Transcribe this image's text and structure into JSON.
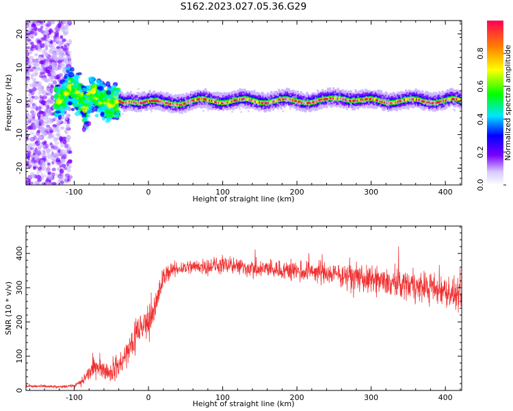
{
  "title": "S162.2023.027.05.36.G29",
  "colors": {
    "snr_line": "#f03030",
    "ridge_core": "#e8203a",
    "scatter": "#7a00ff"
  },
  "chart_data": [
    {
      "type": "heatmap",
      "xlabel": "Height of straight line (km)",
      "ylabel": "Frequency (Hz)",
      "xlim": [
        -165,
        422
      ],
      "ylim": [
        -25,
        24
      ],
      "x_ticks": [
        -100,
        0,
        100,
        200,
        300,
        400
      ],
      "y_ticks": [
        -20,
        -10,
        0,
        10,
        20
      ],
      "grid": false,
      "colorbar": {
        "label": "Normalized spectral amplitude",
        "range": [
          0,
          1
        ],
        "ticks": [
          "0.0",
          "0.2",
          "0.4",
          "0.6",
          "0.8"
        ],
        "colormap": [
          "#ffffff",
          "#7a00ff",
          "#0000ff",
          "#00e5ff",
          "#00ff00",
          "#ffff00",
          "#ff8000",
          "#ff0055"
        ]
      },
      "ridge": {
        "x": [
          -150,
          -120,
          -105,
          -95,
          -85,
          -75,
          -65,
          -55,
          -45,
          -35,
          -25,
          -10,
          0,
          20,
          60,
          100,
          150,
          200,
          240,
          260,
          290,
          330,
          360,
          400,
          422
        ],
        "freq": [
          0,
          0,
          5,
          2,
          -2,
          3,
          1,
          -1,
          0,
          -1,
          0,
          0,
          0,
          -1,
          0,
          0,
          0,
          0,
          0,
          1,
          0,
          0,
          0,
          0,
          0
        ]
      }
    },
    {
      "type": "line",
      "xlabel": "Height of straight line (km)",
      "ylabel": "SNR (10 * v/v)",
      "xlim": [
        -165,
        422
      ],
      "ylim": [
        0,
        480
      ],
      "x_ticks": [
        -100,
        0,
        100,
        200,
        300,
        400
      ],
      "y_ticks": [
        0,
        100,
        200,
        300,
        400
      ],
      "grid": false,
      "series": [
        {
          "envelope_x": [
            -165,
            -140,
            -120,
            -100,
            -90,
            -80,
            -70,
            -60,
            -50,
            -40,
            -30,
            -20,
            -10,
            0,
            10,
            20,
            30,
            50,
            100,
            150,
            200,
            250,
            300,
            350,
            400,
            422
          ],
          "envelope_mean": [
            12,
            12,
            10,
            14,
            25,
            50,
            70,
            60,
            55,
            70,
            100,
            150,
            180,
            200,
            250,
            330,
            350,
            360,
            365,
            355,
            350,
            340,
            320,
            310,
            290,
            270
          ],
          "envelope_spread": [
            6,
            6,
            5,
            6,
            15,
            30,
            40,
            35,
            40,
            45,
            60,
            80,
            80,
            70,
            60,
            40,
            30,
            30,
            35,
            35,
            40,
            45,
            55,
            60,
            65,
            60
          ]
        }
      ]
    }
  ]
}
